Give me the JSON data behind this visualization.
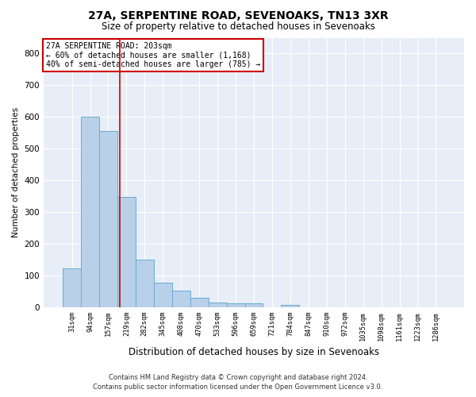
{
  "title": "27A, SERPENTINE ROAD, SEVENOAKS, TN13 3XR",
  "subtitle": "Size of property relative to detached houses in Sevenoaks",
  "xlabel": "Distribution of detached houses by size in Sevenoaks",
  "ylabel": "Number of detached properties",
  "categories": [
    "31sqm",
    "94sqm",
    "157sqm",
    "219sqm",
    "282sqm",
    "345sqm",
    "408sqm",
    "470sqm",
    "533sqm",
    "596sqm",
    "659sqm",
    "721sqm",
    "784sqm",
    "847sqm",
    "910sqm",
    "972sqm",
    "1035sqm",
    "1098sqm",
    "1161sqm",
    "1223sqm",
    "1286sqm"
  ],
  "values": [
    122,
    600,
    555,
    348,
    150,
    78,
    52,
    30,
    15,
    12,
    12,
    0,
    8,
    0,
    0,
    0,
    0,
    0,
    0,
    0,
    0
  ],
  "bar_color": "#b8d0e8",
  "bar_edge_color": "#6aacd4",
  "background_color": "#e8eef7",
  "grid_color": "#ffffff",
  "red_line_x": 2.62,
  "annotation_line1": "27A SERPENTINE ROAD: 203sqm",
  "annotation_line2": "← 60% of detached houses are smaller (1,168)",
  "annotation_line3": "40% of semi-detached houses are larger (785) →",
  "annotation_box_color": "#ffffff",
  "annotation_box_edge": "#cc0000",
  "footer_line1": "Contains HM Land Registry data © Crown copyright and database right 2024.",
  "footer_line2": "Contains public sector information licensed under the Open Government Licence v3.0.",
  "ylim": [
    0,
    850
  ],
  "yticks": [
    0,
    100,
    200,
    300,
    400,
    500,
    600,
    700,
    800
  ]
}
